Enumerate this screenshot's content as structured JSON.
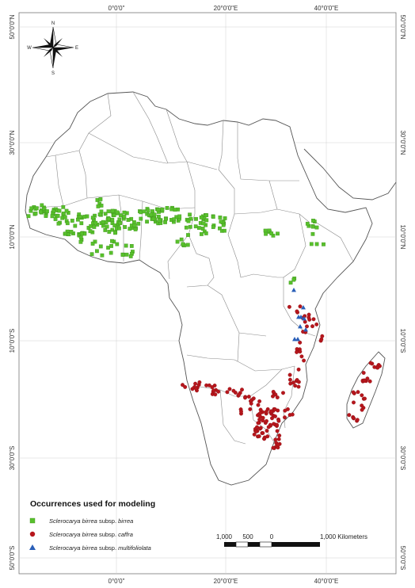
{
  "graticule": {
    "top_labels": [
      "0°0'0\"",
      "20°0'0\"E",
      "40°0'0\"E"
    ],
    "bottom_labels": [
      "0°0'0\"",
      "20°0'0\"E",
      "40°0'0\"E"
    ],
    "left_labels": [
      "50°0'0\"N",
      "30°0'0\"N",
      "10°0'0\"N",
      "10°0'0\"S",
      "30°0'0\"S",
      "50°0'0\"S"
    ],
    "right_labels": [
      "50°0'0\"N",
      "30°0'0\"N",
      "10°0'0\"N",
      "10°0'0\"S",
      "30°0'0\"S",
      "50°0'0\"S"
    ],
    "line_color": "#d0d0d0"
  },
  "compass": {
    "n": "N",
    "s": "S",
    "e": "E",
    "w": "W",
    "icon": "north-arrow-compass-rose"
  },
  "legend": {
    "title": "Occurrences used for modeling",
    "items": [
      {
        "italic": "Sclerocarya birrea",
        "plain": " subsp. ",
        "italic2": "birrea",
        "symbol": "square",
        "color": "#58c02c"
      },
      {
        "italic": "Sclerocarya birrea",
        "plain": " subsp. ",
        "italic2": "caffra",
        "symbol": "circle",
        "color": "#b7161c"
      },
      {
        "italic": "Sclerocarya birrea",
        "plain": " subsp. ",
        "italic2": "multifoliolata",
        "symbol": "triangle",
        "color": "#2a5fb8"
      }
    ]
  },
  "scale_bar": {
    "labels": [
      "1,000",
      "500",
      "0",
      "1,000 Kilometers"
    ]
  },
  "colors": {
    "land_fill": "#ffffff",
    "border": "#8a8a8a",
    "coast": "#555555"
  }
}
